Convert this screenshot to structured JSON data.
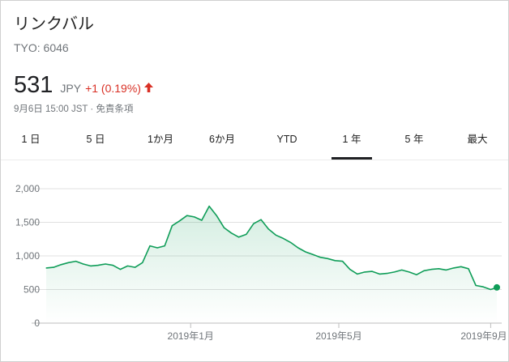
{
  "stock": {
    "name": "リンクバル",
    "ticker": "TYO: 6046",
    "price": "531",
    "currency": "JPY",
    "change": "+1 (0.19%)",
    "timestamp": "9月6日 15:00 JST · 免責条項"
  },
  "tabs": [
    {
      "label": "1 日",
      "active": false
    },
    {
      "label": "5 日",
      "active": false
    },
    {
      "label": "1か月",
      "active": false
    },
    {
      "label": "6か月",
      "active": false
    },
    {
      "label": "YTD",
      "active": false
    },
    {
      "label": "1 年",
      "active": true
    },
    {
      "label": "5 年",
      "active": false
    },
    {
      "label": "最大",
      "active": false
    }
  ],
  "colors": {
    "line": "#0f9d58",
    "change_negative": "#d93025",
    "grid": "#e0e0e0"
  },
  "chart_data": {
    "type": "area",
    "ylim": [
      0,
      2000
    ],
    "yticks": [
      {
        "value": 0,
        "label": "0"
      },
      {
        "value": 500,
        "label": "500"
      },
      {
        "value": 1000,
        "label": "1,000"
      },
      {
        "value": 1500,
        "label": "1,500"
      },
      {
        "value": 2000,
        "label": "2,000"
      }
    ],
    "xticks": [
      {
        "date": "2019-01-01",
        "label": "2019年1月"
      },
      {
        "date": "2019-05-01",
        "label": "2019年5月"
      },
      {
        "date": "2019-09-01",
        "label": "2019年9月"
      }
    ],
    "xlim": [
      "2018-09-06",
      "2019-09-06"
    ],
    "series": [
      {
        "points": [
          [
            "2018-09-06",
            820
          ],
          [
            "2018-09-12",
            830
          ],
          [
            "2018-09-18",
            870
          ],
          [
            "2018-09-24",
            900
          ],
          [
            "2018-09-30",
            920
          ],
          [
            "2018-10-06",
            880
          ],
          [
            "2018-10-12",
            850
          ],
          [
            "2018-10-18",
            860
          ],
          [
            "2018-10-24",
            880
          ],
          [
            "2018-10-30",
            860
          ],
          [
            "2018-11-05",
            800
          ],
          [
            "2018-11-11",
            850
          ],
          [
            "2018-11-17",
            830
          ],
          [
            "2018-11-23",
            900
          ],
          [
            "2018-11-29",
            1150
          ],
          [
            "2018-12-05",
            1120
          ],
          [
            "2018-12-11",
            1150
          ],
          [
            "2018-12-17",
            1450
          ],
          [
            "2018-12-23",
            1520
          ],
          [
            "2018-12-29",
            1600
          ],
          [
            "2019-01-04",
            1580
          ],
          [
            "2019-01-10",
            1530
          ],
          [
            "2019-01-16",
            1740
          ],
          [
            "2019-01-22",
            1600
          ],
          [
            "2019-01-28",
            1420
          ],
          [
            "2019-02-03",
            1340
          ],
          [
            "2019-02-09",
            1280
          ],
          [
            "2019-02-15",
            1320
          ],
          [
            "2019-02-21",
            1480
          ],
          [
            "2019-02-27",
            1540
          ],
          [
            "2019-03-05",
            1400
          ],
          [
            "2019-03-11",
            1310
          ],
          [
            "2019-03-17",
            1260
          ],
          [
            "2019-03-23",
            1200
          ],
          [
            "2019-03-29",
            1120
          ],
          [
            "2019-04-04",
            1060
          ],
          [
            "2019-04-10",
            1020
          ],
          [
            "2019-04-16",
            980
          ],
          [
            "2019-04-22",
            960
          ],
          [
            "2019-04-28",
            930
          ],
          [
            "2019-05-04",
            920
          ],
          [
            "2019-05-10",
            800
          ],
          [
            "2019-05-16",
            730
          ],
          [
            "2019-05-22",
            760
          ],
          [
            "2019-05-28",
            770
          ],
          [
            "2019-06-03",
            730
          ],
          [
            "2019-06-09",
            740
          ],
          [
            "2019-06-15",
            760
          ],
          [
            "2019-06-21",
            790
          ],
          [
            "2019-06-27",
            760
          ],
          [
            "2019-07-03",
            720
          ],
          [
            "2019-07-09",
            780
          ],
          [
            "2019-07-15",
            800
          ],
          [
            "2019-07-21",
            810
          ],
          [
            "2019-07-27",
            790
          ],
          [
            "2019-08-02",
            820
          ],
          [
            "2019-08-08",
            840
          ],
          [
            "2019-08-14",
            810
          ],
          [
            "2019-08-20",
            560
          ],
          [
            "2019-08-26",
            540
          ],
          [
            "2019-09-01",
            500
          ],
          [
            "2019-09-06",
            531
          ]
        ]
      }
    ]
  }
}
